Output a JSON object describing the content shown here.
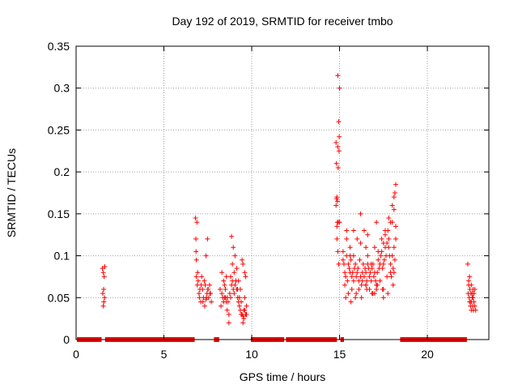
{
  "chart_data": {
    "type": "scatter",
    "title": "Day 192 of 2019, SRMTID for receiver tmbo",
    "xlabel": "GPS time / hours",
    "ylabel": "SRMTID / TECUs",
    "xlim": [
      0,
      23.5
    ],
    "ylim": [
      0,
      0.35
    ],
    "xticks": [
      0,
      5,
      10,
      15,
      20
    ],
    "xtick_labels": [
      "0",
      "5",
      "10",
      "15",
      "20"
    ],
    "yticks": [
      0,
      0.05,
      0.1,
      0.15,
      0.2,
      0.25,
      0.3,
      0.35
    ],
    "ytick_labels": [
      "0",
      "0.05",
      "0.1",
      "0.15",
      "0.2",
      "0.25",
      "0.3",
      "0.35"
    ],
    "grid": true,
    "marker": "+",
    "color": "#ff0000",
    "series": [
      {
        "name": "SRMTID",
        "x": [
          1.5,
          1.52,
          1.55,
          1.55,
          1.57,
          1.58,
          1.6,
          1.62,
          1.63,
          6.8,
          6.82,
          6.85,
          6.9,
          6.95,
          7.0,
          7.05,
          7.1,
          7.15,
          7.2,
          7.25,
          7.3,
          7.35,
          7.4,
          7.45,
          7.5,
          7.55,
          7.6,
          7.65,
          7.7,
          6.88,
          6.92,
          7.02,
          7.12,
          7.22,
          7.32,
          7.42,
          7.52,
          7.62,
          7.48,
          7.4,
          6.85,
          6.83,
          8.2,
          8.25,
          8.3,
          8.35,
          8.4,
          8.45,
          8.5,
          8.55,
          8.6,
          8.65,
          8.7,
          8.75,
          8.8,
          8.85,
          8.9,
          8.95,
          9.0,
          9.05,
          9.1,
          9.15,
          9.2,
          9.25,
          9.3,
          9.35,
          9.4,
          9.45,
          9.5,
          9.55,
          9.6,
          9.65,
          9.7,
          8.9,
          8.8,
          9.0,
          9.1,
          9.2,
          9.3,
          9.4,
          8.6,
          8.7,
          8.5,
          9.45,
          9.5,
          9.6,
          9.65,
          9.55,
          9.5,
          8.85,
          8.95,
          9.05,
          9.15,
          9.25,
          9.35,
          8.3,
          8.4,
          8.45,
          8.55,
          9.6,
          9.7,
          14.8,
          14.82,
          14.85,
          14.88,
          14.9,
          14.92,
          14.95,
          14.97,
          15.0,
          14.85,
          14.9,
          14.95,
          15.0,
          14.83,
          14.88,
          14.93,
          14.98,
          14.8,
          14.85,
          14.9,
          15.2,
          15.25,
          15.3,
          15.35,
          15.4,
          15.45,
          15.5,
          15.55,
          15.6,
          15.65,
          15.7,
          15.75,
          15.8,
          15.85,
          15.9,
          15.95,
          16.0,
          16.05,
          16.1,
          16.15,
          16.2,
          16.25,
          16.3,
          16.35,
          16.4,
          16.45,
          16.5,
          16.55,
          16.6,
          16.65,
          16.7,
          16.75,
          16.8,
          16.85,
          16.9,
          16.95,
          17.0,
          17.05,
          17.1,
          17.15,
          17.2,
          17.25,
          17.3,
          17.35,
          17.4,
          17.45,
          17.5,
          17.55,
          17.6,
          17.65,
          17.7,
          17.75,
          17.8,
          17.85,
          17.9,
          17.95,
          18.0,
          18.05,
          18.1,
          18.15,
          18.2,
          15.3,
          15.5,
          15.7,
          15.9,
          16.1,
          16.3,
          16.5,
          16.7,
          16.9,
          17.1,
          17.3,
          17.5,
          17.7,
          17.9,
          18.1,
          15.4,
          15.6,
          15.8,
          16.0,
          16.2,
          16.4,
          16.6,
          16.8,
          17.0,
          17.2,
          17.4,
          17.6,
          17.8,
          18.0,
          18.2,
          15.35,
          15.65,
          15.95,
          16.25,
          16.55,
          16.85,
          17.15,
          17.45,
          17.75,
          18.05,
          16.5,
          16.5,
          16.6,
          17.0,
          17.1,
          17.5,
          17.5,
          17.6,
          17.8,
          17.9,
          18.0,
          18.1,
          18.2,
          18.1,
          18.15,
          15.8,
          16.2,
          15.4,
          15.2,
          15.6,
          22.3,
          22.32,
          22.35,
          22.38,
          22.4,
          22.42,
          22.45,
          22.48,
          22.5,
          22.52,
          22.55,
          22.58,
          22.6,
          22.62,
          22.65,
          22.7,
          22.75,
          22.4,
          22.5,
          22.6,
          22.55,
          22.45,
          22.35,
          22.65,
          22.7
        ],
        "y": [
          0.085,
          0.055,
          0.04,
          0.08,
          0.06,
          0.045,
          0.075,
          0.05,
          0.087,
          0.145,
          0.12,
          0.095,
          0.065,
          0.07,
          0.055,
          0.06,
          0.045,
          0.075,
          0.06,
          0.05,
          0.07,
          0.065,
          0.048,
          0.055,
          0.06,
          0.05,
          0.065,
          0.055,
          0.045,
          0.14,
          0.08,
          0.05,
          0.065,
          0.045,
          0.04,
          0.05,
          0.06,
          0.055,
          0.12,
          0.1,
          0.075,
          0.105,
          0.06,
          0.04,
          0.055,
          0.05,
          0.045,
          0.065,
          0.06,
          0.075,
          0.05,
          0.045,
          0.03,
          0.055,
          0.05,
          0.065,
          0.07,
          0.06,
          0.055,
          0.065,
          0.07,
          0.06,
          0.05,
          0.045,
          0.04,
          0.035,
          0.03,
          0.03,
          0.028,
          0.025,
          0.035,
          0.03,
          0.04,
          0.09,
          0.075,
          0.08,
          0.07,
          0.06,
          0.05,
          0.045,
          0.035,
          0.02,
          0.05,
          0.095,
          0.09,
          0.08,
          0.075,
          0.035,
          0.02,
          0.123,
          0.11,
          0.1,
          0.085,
          0.07,
          0.06,
          0.08,
          0.07,
          0.05,
          0.045,
          0.05,
          0.03,
          0.235,
          0.21,
          0.17,
          0.14,
          0.23,
          0.205,
          0.26,
          0.225,
          0.3,
          0.135,
          0.105,
          0.09,
          0.14,
          0.168,
          0.165,
          0.14,
          0.242,
          0.16,
          0.12,
          0.315,
          0.105,
          0.09,
          0.08,
          0.075,
          0.1,
          0.07,
          0.09,
          0.085,
          0.08,
          0.095,
          0.075,
          0.08,
          0.07,
          0.085,
          0.09,
          0.075,
          0.08,
          0.085,
          0.07,
          0.095,
          0.075,
          0.065,
          0.08,
          0.09,
          0.075,
          0.085,
          0.08,
          0.07,
          0.09,
          0.085,
          0.075,
          0.08,
          0.07,
          0.085,
          0.09,
          0.075,
          0.08,
          0.07,
          0.06,
          0.08,
          0.095,
          0.085,
          0.09,
          0.1,
          0.105,
          0.085,
          0.09,
          0.095,
          0.11,
          0.1,
          0.115,
          0.13,
          0.12,
          0.1,
          0.09,
          0.075,
          0.1,
          0.085,
          0.11,
          0.095,
          0.12,
          0.065,
          0.055,
          0.06,
          0.05,
          0.06,
          0.07,
          0.065,
          0.06,
          0.055,
          0.065,
          0.07,
          0.06,
          0.075,
          0.08,
          0.08,
          0.12,
          0.11,
          0.1,
          0.12,
          0.115,
          0.13,
          0.1,
          0.09,
          0.11,
          0.105,
          0.12,
          0.125,
          0.11,
          0.14,
          0.135,
          0.05,
          0.045,
          0.055,
          0.05,
          0.06,
          0.055,
          0.065,
          0.06,
          0.055,
          0.065,
          0.065,
          0.11,
          0.125,
          0.055,
          0.14,
          0.05,
          0.115,
          0.13,
          0.145,
          0.14,
          0.16,
          0.17,
          0.185,
          0.155,
          0.175,
          0.13,
          0.15,
          0.13,
          0.095,
          0.1,
          0.09,
          0.055,
          0.07,
          0.05,
          0.045,
          0.06,
          0.04,
          0.055,
          0.035,
          0.045,
          0.05,
          0.04,
          0.06,
          0.035,
          0.045,
          0.04,
          0.035,
          0.075,
          0.065,
          0.05,
          0.055,
          0.045,
          0.065,
          0.055,
          0.06
        ]
      },
      {
        "name": "zero-level",
        "x_ranges": [
          [
            0.05,
            1.45
          ],
          [
            1.65,
            6.75
          ],
          [
            7.85,
            8.15
          ],
          [
            9.95,
            11.85
          ],
          [
            11.95,
            14.85
          ],
          [
            15.05,
            15.25
          ],
          [
            18.45,
            22.25
          ]
        ],
        "y": 0
      }
    ]
  }
}
